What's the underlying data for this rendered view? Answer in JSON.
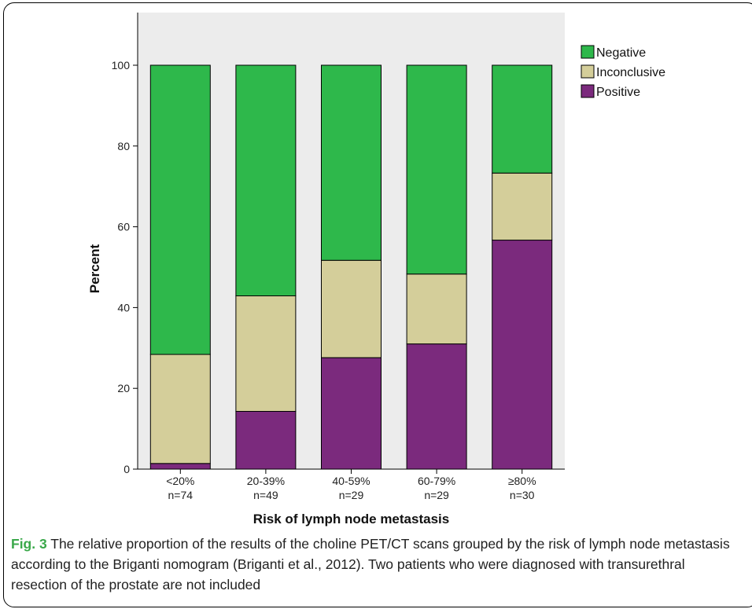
{
  "figure": {
    "caption_label": "Fig. 3",
    "caption_text": "The relative proportion of the results of the choline PET/CT scans grouped by the risk of lymph node metastasis according to the Briganti nomogram (Briganti et al., 2012). Two patients who were diagnosed with transurethral resection of the prostate are not included"
  },
  "chart_data": {
    "type": "bar",
    "stacked": true,
    "categories": [
      "<20%",
      "20-39%",
      "40-59%",
      "60-79%",
      "≥80%"
    ],
    "category_counts": [
      "n=74",
      "n=49",
      "n=29",
      "n=29",
      "n=30"
    ],
    "series": [
      {
        "name": "Positive",
        "color": "#7b2a7d",
        "values": [
          1.4,
          14.3,
          27.6,
          31.0,
          56.7
        ]
      },
      {
        "name": "Inconclusive",
        "color": "#d4ce9a",
        "values": [
          27.0,
          28.6,
          24.1,
          17.3,
          16.6
        ]
      },
      {
        "name": "Negative",
        "color": "#2eb84b",
        "values": [
          71.6,
          57.1,
          48.3,
          51.7,
          26.7
        ]
      }
    ],
    "xlabel": "Risk of lymph node metastasis",
    "ylabel": "Percent",
    "ylim": [
      0,
      100
    ],
    "yticks": [
      0,
      20,
      40,
      60,
      80,
      100
    ],
    "legend_position": "top-right",
    "plot_background": "#ececec",
    "grid": false
  }
}
